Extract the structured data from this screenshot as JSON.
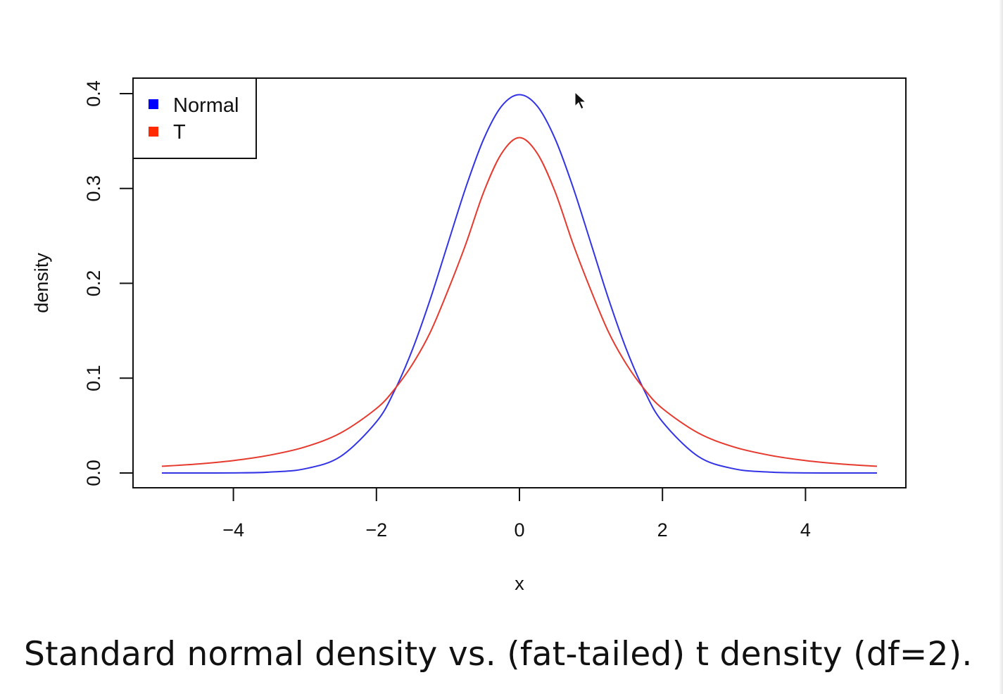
{
  "chart_data": {
    "type": "line",
    "xlabel": "x",
    "ylabel": "density",
    "xlim": [
      -5,
      5
    ],
    "ylim": [
      0,
      0.4
    ],
    "x_ticks": [
      -4,
      -2,
      0,
      2,
      4
    ],
    "x_tick_labels": [
      "−4",
      "−2",
      "0",
      "2",
      "4"
    ],
    "y_ticks": [
      0.0,
      0.1,
      0.2,
      0.3,
      0.4
    ],
    "y_tick_labels": [
      "0.0",
      "0.1",
      "0.2",
      "0.3",
      "0.4"
    ],
    "grid": false,
    "legend_position": "top-left",
    "x": [
      -5,
      -4.5,
      -4,
      -3.5,
      -3,
      -2.5,
      -2,
      -1.75,
      -1.5,
      -1.25,
      -1,
      -0.75,
      -0.5,
      -0.25,
      0,
      0.25,
      0.5,
      0.75,
      1,
      1.25,
      1.5,
      1.75,
      2,
      2.5,
      3,
      3.5,
      4,
      4.5,
      5
    ],
    "series": [
      {
        "name": "Normal",
        "color": "#3333e6",
        "legend_color": "#0000ff",
        "values": [
          0.0,
          0.0,
          0.0001,
          0.0009,
          0.0044,
          0.0175,
          0.054,
          0.0863,
          0.1295,
          0.1826,
          0.242,
          0.3011,
          0.3521,
          0.3867,
          0.3989,
          0.3867,
          0.3521,
          0.3011,
          0.242,
          0.1826,
          0.1295,
          0.0863,
          0.054,
          0.0175,
          0.0044,
          0.0009,
          0.0001,
          0.0,
          0.0
        ]
      },
      {
        "name": "T",
        "color": "#e63a2e",
        "legend_color": "#ff2a00",
        "values": [
          0.0071,
          0.0095,
          0.0131,
          0.0187,
          0.0274,
          0.0422,
          0.068,
          0.088,
          0.1142,
          0.1479,
          0.1925,
          0.2414,
          0.2962,
          0.3369,
          0.3536,
          0.3369,
          0.2962,
          0.2414,
          0.1925,
          0.1479,
          0.1142,
          0.088,
          0.068,
          0.0422,
          0.0274,
          0.0187,
          0.0131,
          0.0095,
          0.0071
        ]
      }
    ]
  },
  "caption": "Standard normal density vs. (fat-tailed) t density (df=2)."
}
